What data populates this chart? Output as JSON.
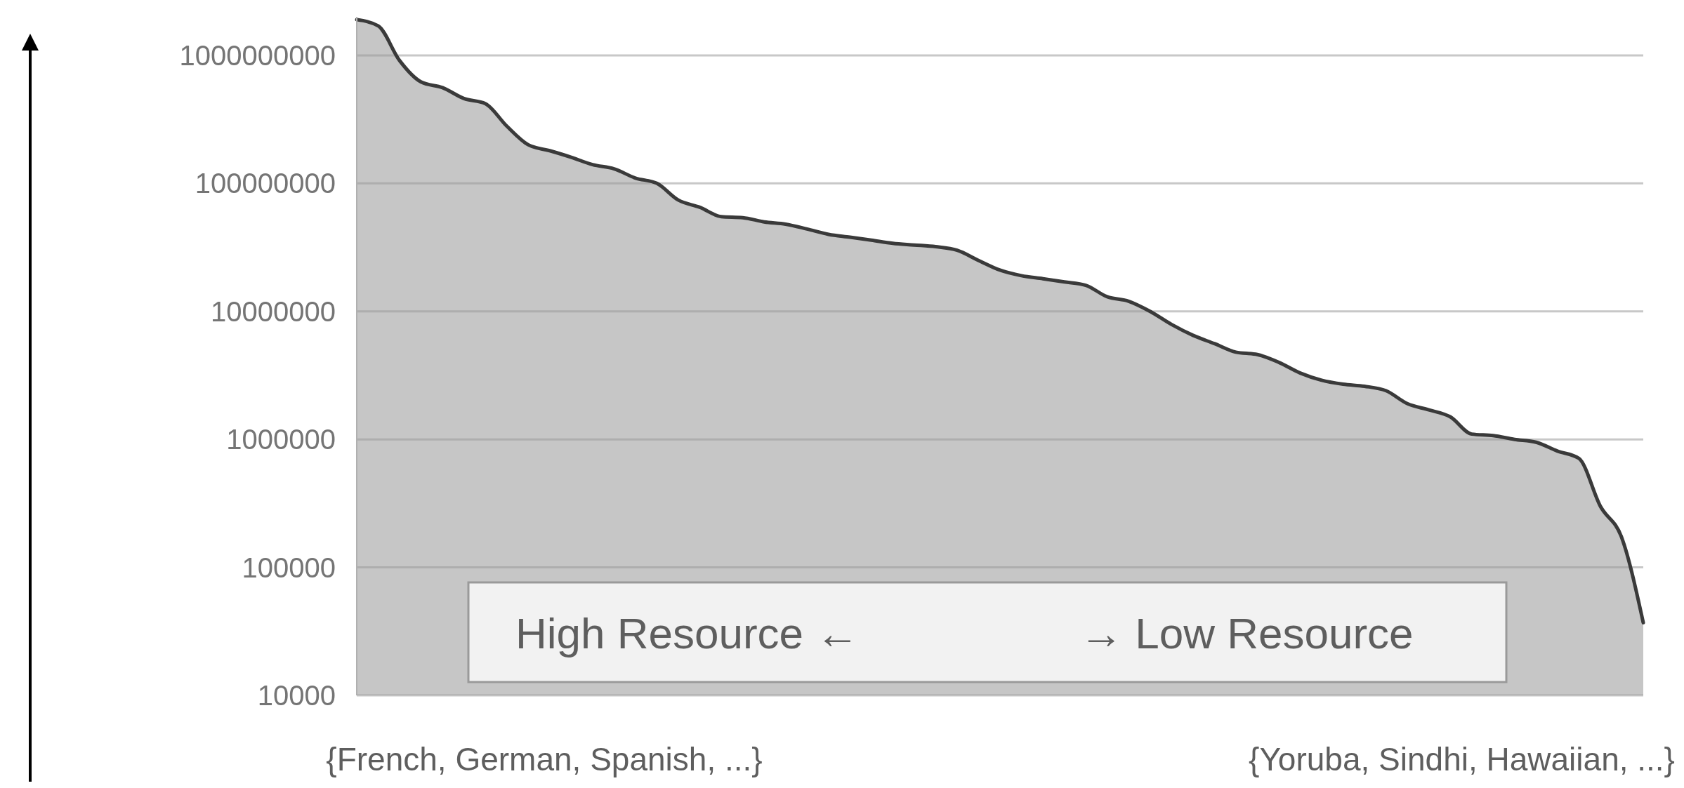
{
  "chart_data": {
    "type": "area",
    "categories": [
      null,
      null,
      null,
      null,
      null,
      null,
      null,
      null,
      null,
      null,
      null,
      null,
      null,
      null,
      null,
      null,
      null,
      null,
      null,
      null,
      null,
      null,
      null,
      null,
      null,
      null,
      null,
      null,
      null,
      null,
      null,
      null,
      null,
      null,
      null,
      null,
      null,
      null,
      null,
      null,
      null,
      null,
      null,
      null,
      null,
      null,
      null,
      null,
      null,
      null,
      null,
      null,
      null,
      null,
      null,
      null,
      null,
      null,
      null,
      null,
      null
    ],
    "series": [
      {
        "color": "#c6c6c6",
        "values": [
          1900000000,
          1700000000,
          910000000,
          620000000,
          560000000,
          460000000,
          420000000,
          280000000,
          200000000,
          180000000,
          160000000,
          140000000,
          130000000,
          110000000,
          100000000,
          74000000,
          65000000,
          55000000,
          54000000,
          50000000,
          48000000,
          44000000,
          40000000,
          38000000,
          36000000,
          34000000,
          33000000,
          32000000,
          30000000,
          25000000,
          21000000,
          19000000,
          18000000,
          17000000,
          16000000,
          13000000,
          12000000,
          10000000,
          7900000,
          6500000,
          5600000,
          4800000,
          4600000,
          4000000,
          3300000,
          2900000,
          2700000,
          2600000,
          2400000,
          1900000,
          1700000,
          1500000,
          1100000,
          1070000,
          1000000,
          950000,
          810000,
          710000,
          300000,
          170000,
          37000
        ]
      }
    ],
    "log": "y",
    "ylim": [
      10000,
      2000000000
    ],
    "yticks": [
      10000,
      100000,
      1000000,
      10000000,
      100000000,
      1000000000
    ],
    "grid": "y",
    "annotations": [
      "High Resource ←",
      "→ Low Resource",
      "{French, German, Spanish, ...}",
      "{Yoruba, Sindhi, Hawaiian, ...}"
    ]
  }
}
